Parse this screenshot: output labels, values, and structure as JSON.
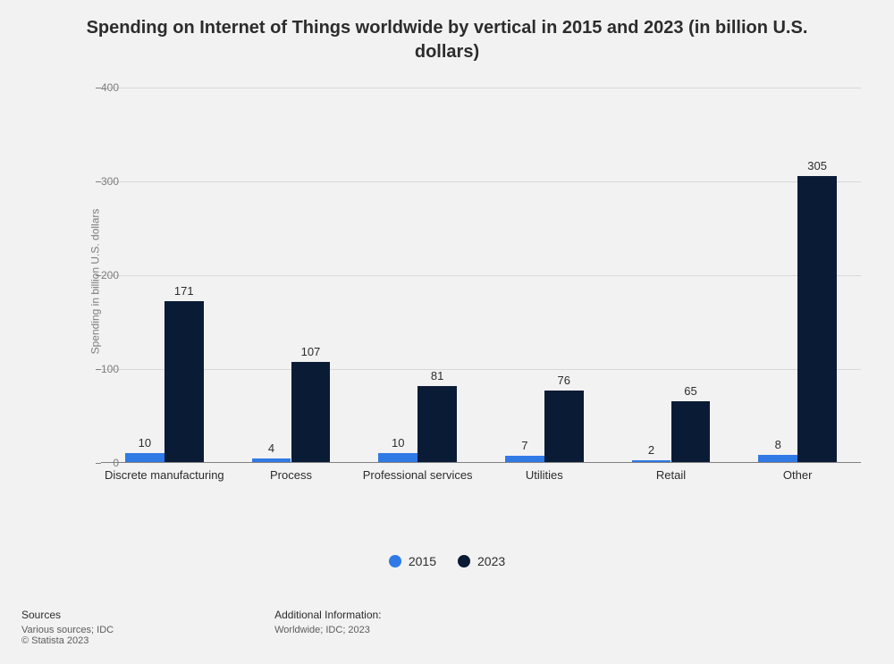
{
  "title": "Spending on Internet of Things worldwide by vertical in 2015 and 2023 (in billion U.S. dollars)",
  "chart": {
    "type": "bar",
    "ylabel": "Spending in billion U.S. dollars",
    "ylim": [
      0,
      400
    ],
    "ytick_step": 100,
    "yticks": [
      0,
      100,
      200,
      300,
      400
    ],
    "background_color": "#f2f2f2",
    "grid_color": "#d8d8d8",
    "axis_color": "#808080",
    "tick_label_color": "#7d7d7d",
    "bar_group_width": 0.62,
    "bar_width": 0.31,
    "categories": [
      {
        "label": "Discrete manufacturing"
      },
      {
        "label": "Process"
      },
      {
        "label": "Professional services"
      },
      {
        "label": "Utilities"
      },
      {
        "label": "Retail"
      },
      {
        "label": "Other"
      }
    ],
    "series": [
      {
        "name": "2015",
        "color": "#307ae6",
        "values": [
          10,
          4,
          10,
          7,
          2,
          8
        ]
      },
      {
        "name": "2023",
        "color": "#0a1b36",
        "values": [
          171,
          107,
          81,
          76,
          65,
          305
        ]
      }
    ],
    "bar_label_color": "#2c2c2c",
    "bar_label_fontsize": 13
  },
  "legend": {
    "items": [
      {
        "label": "2015",
        "color": "#307ae6"
      },
      {
        "label": "2023",
        "color": "#0a1b36"
      }
    ]
  },
  "footer": {
    "sources_heading": "Sources",
    "sources_line1": "Various sources; IDC",
    "sources_line2": "© Statista 2023",
    "info_heading": "Additional Information:",
    "info_line": "Worldwide; IDC; 2023"
  }
}
